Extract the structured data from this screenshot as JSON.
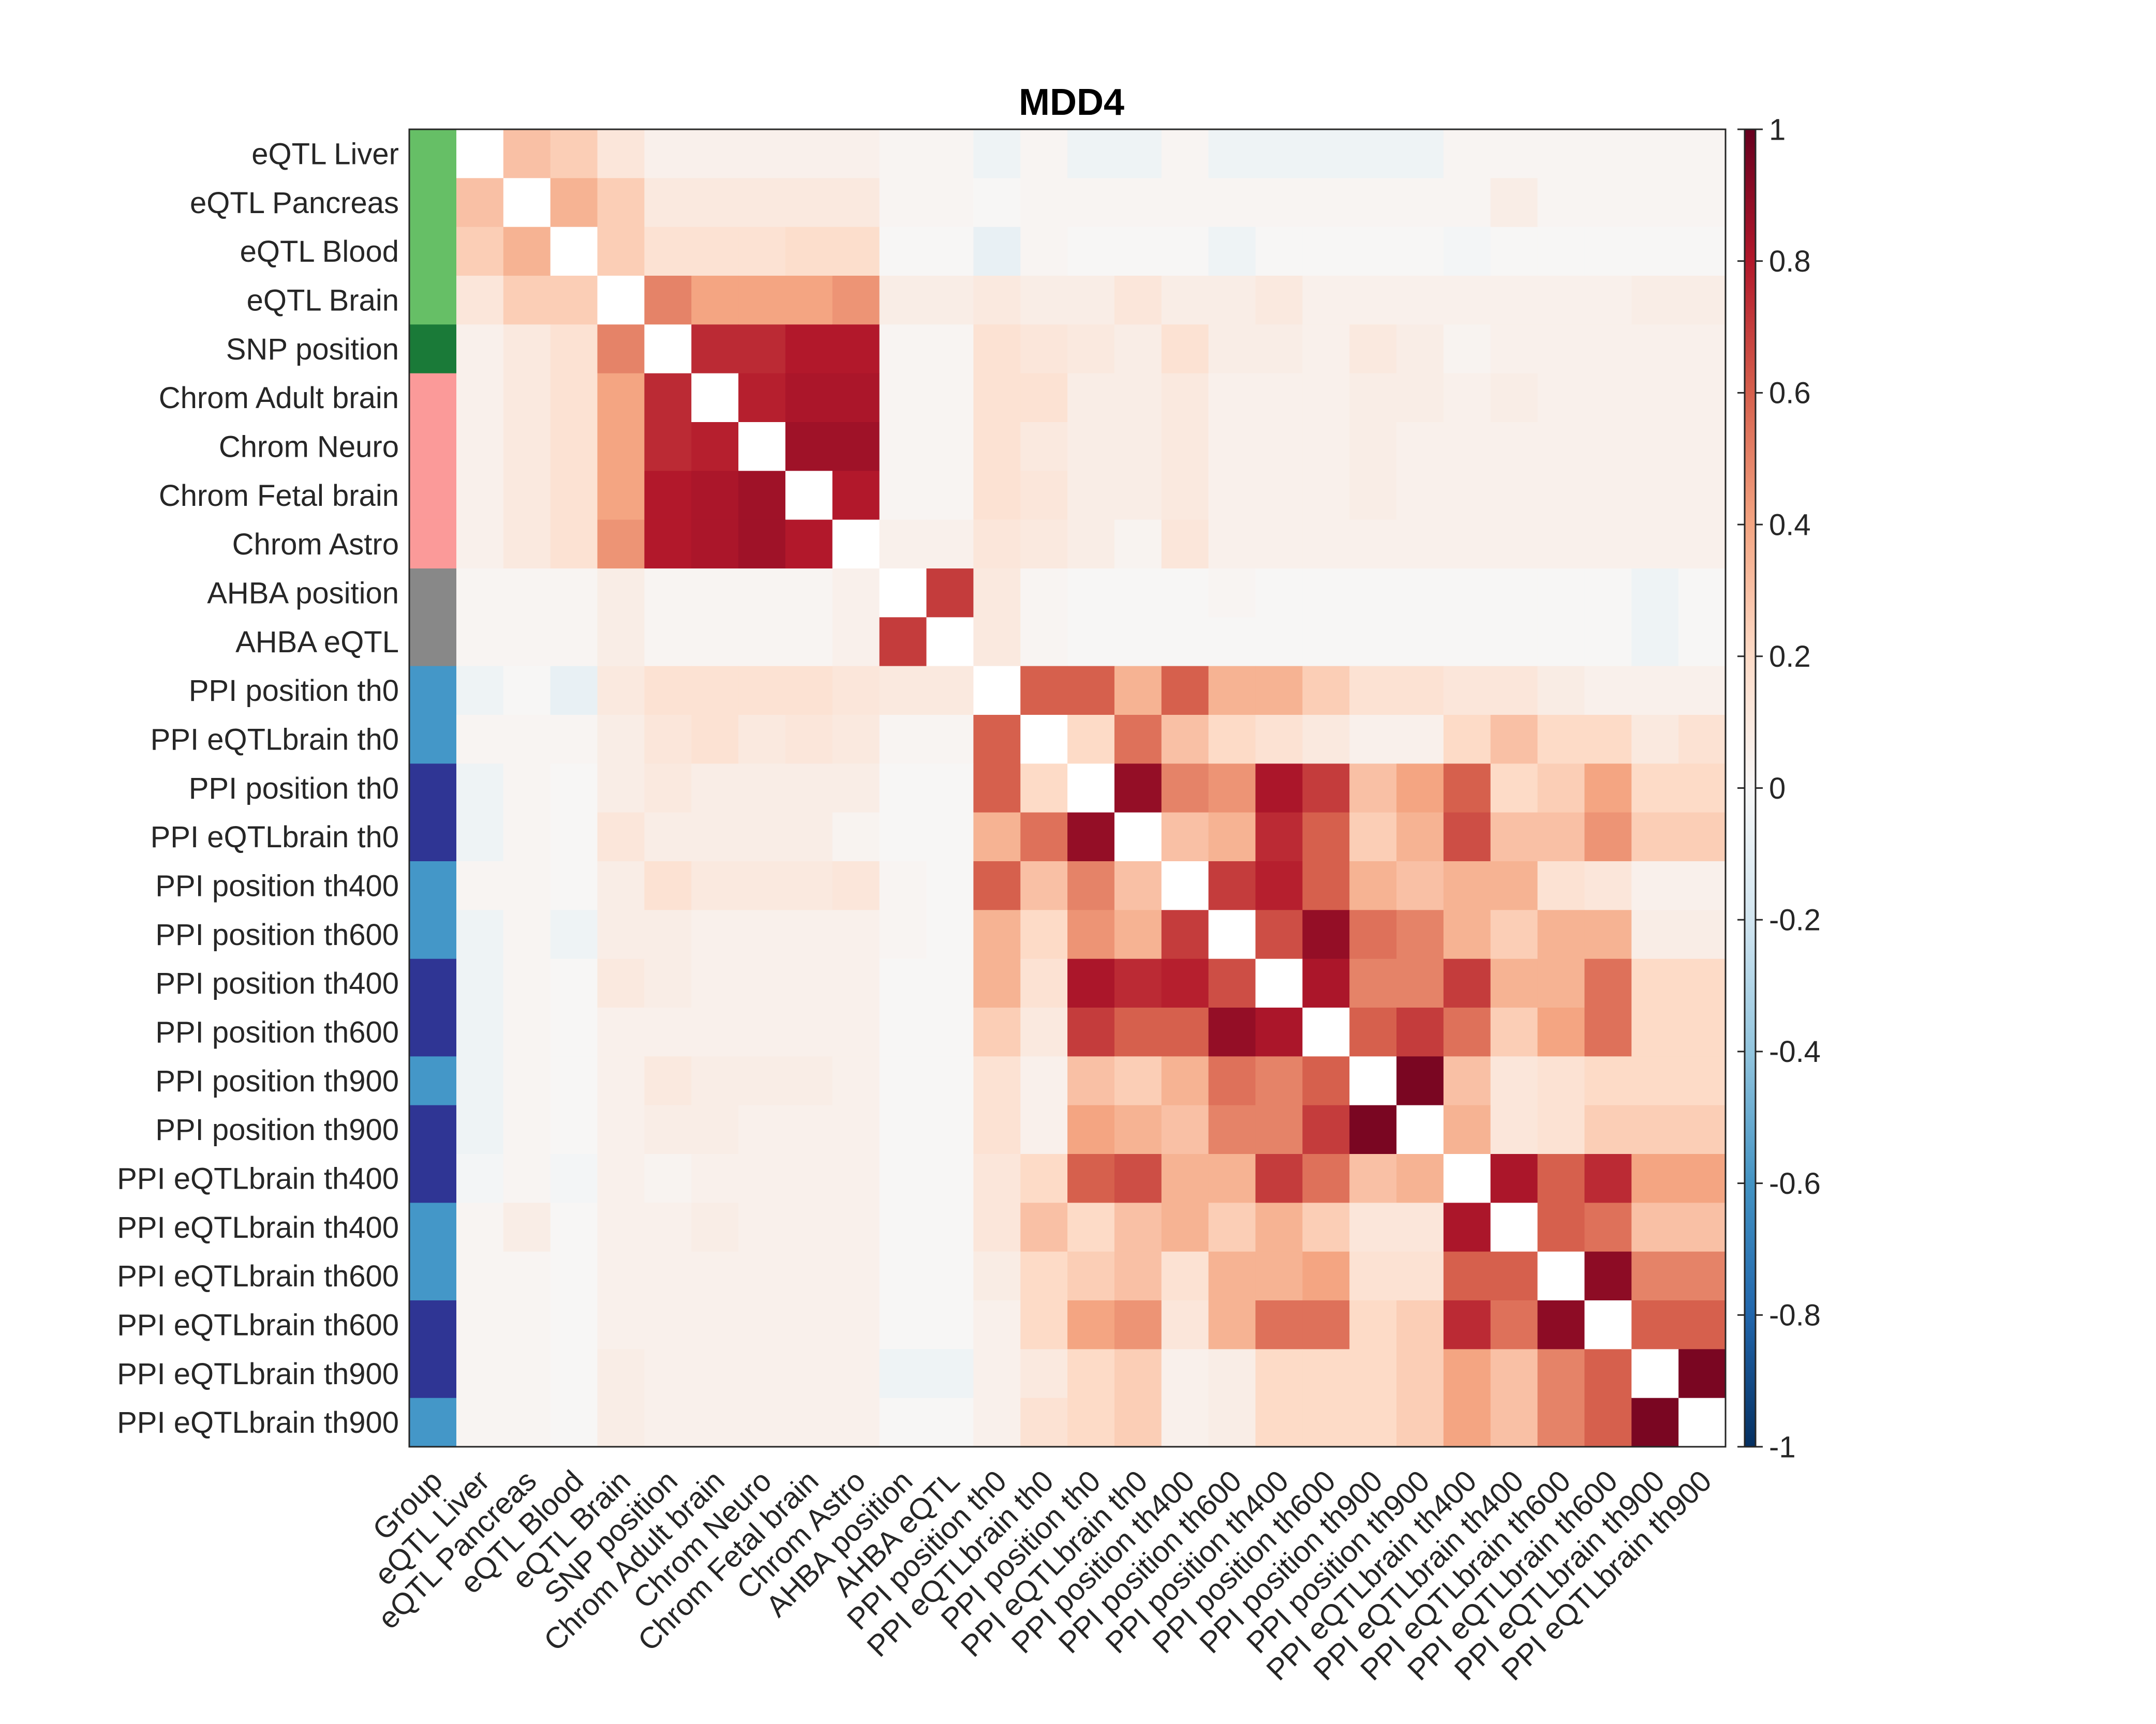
{
  "chart_data": {
    "type": "heatmap",
    "title": "MDD4",
    "x_tick_labels": [
      "Group",
      "eQTL Liver",
      "eQTL Pancreas",
      "eQTL Blood",
      "eQTL Brain",
      "SNP position",
      "Chrom Adult brain",
      "Chrom Neuro",
      "Chrom Fetal brain",
      "Chrom Astro",
      "AHBA position",
      "AHBA eQTL",
      "PPI position th0",
      "PPI eQTLbrain th0",
      "PPI position th0",
      "PPI eQTLbrain th0",
      "PPI position th400",
      "PPI position th600",
      "PPI position th400",
      "PPI position th600",
      "PPI position th900",
      "PPI position th900",
      "PPI eQTLbrain th400",
      "PPI eQTLbrain th400",
      "PPI eQTLbrain th600",
      "PPI eQTLbrain th600",
      "PPI eQTLbrain th900",
      "PPI eQTLbrain th900"
    ],
    "y_tick_labels": [
      "eQTL Liver",
      "eQTL Pancreas",
      "eQTL Blood",
      "eQTL Brain",
      "SNP position",
      "Chrom Adult brain",
      "Chrom Neuro",
      "Chrom Fetal brain",
      "Chrom Astro",
      "AHBA position",
      "AHBA eQTL",
      "PPI position th0",
      "PPI eQTLbrain th0",
      "PPI position th0",
      "PPI eQTLbrain th0",
      "PPI position th400",
      "PPI position th600",
      "PPI position th400",
      "PPI position th600",
      "PPI position th900",
      "PPI position th900",
      "PPI eQTLbrain th400",
      "PPI eQTLbrain th400",
      "PPI eQTLbrain th600",
      "PPI eQTLbrain th600",
      "PPI eQTLbrain th900",
      "PPI eQTLbrain th900"
    ],
    "group_colors": [
      "#66bf66",
      "#66bf66",
      "#66bf66",
      "#66bf66",
      "#1a7a38",
      "#fb9a99",
      "#fb9a99",
      "#fb9a99",
      "#fb9a99",
      "#888888",
      "#888888",
      "#4497c8",
      "#4497c8",
      "#2f3594",
      "#2f3594",
      "#4497c8",
      "#4497c8",
      "#2f3594",
      "#2f3594",
      "#4497c8",
      "#2f3594",
      "#2f3594",
      "#4497c8",
      "#4497c8",
      "#2f3594",
      "#2f3594",
      "#4497c8"
    ],
    "matrix": [
      [
        null,
        0.3,
        0.25,
        0.12,
        0.05,
        0.05,
        0.05,
        0.05,
        0.05,
        0.02,
        0.02,
        -0.05,
        0.02,
        -0.05,
        -0.05,
        0.02,
        -0.05,
        -0.05,
        -0.05,
        -0.05,
        -0.05,
        0.02,
        0.02,
        0.02,
        0.02,
        0.02,
        0.02
      ],
      [
        0.3,
        null,
        0.35,
        0.25,
        0.1,
        0.1,
        0.1,
        0.1,
        0.1,
        0.02,
        0.02,
        0.01,
        0.02,
        0.02,
        0.02,
        0.02,
        0.02,
        0.02,
        0.02,
        0.02,
        0.02,
        0.02,
        0.07,
        0.02,
        0.02,
        0.02,
        0.02
      ],
      [
        0.25,
        0.35,
        null,
        0.25,
        0.15,
        0.15,
        0.15,
        0.18,
        0.18,
        0.01,
        0.01,
        -0.08,
        0.02,
        0.01,
        0.01,
        0.01,
        -0.05,
        0.01,
        0.01,
        0.01,
        0.01,
        -0.02,
        0.01,
        0.01,
        0.01,
        0.01,
        0.01
      ],
      [
        0.12,
        0.25,
        0.25,
        null,
        0.5,
        0.4,
        0.4,
        0.4,
        0.45,
        0.07,
        0.07,
        0.1,
        0.07,
        0.07,
        0.12,
        0.07,
        0.07,
        0.1,
        0.05,
        0.05,
        0.05,
        0.05,
        0.05,
        0.05,
        0.05,
        0.07,
        0.07
      ],
      [
        0.05,
        0.1,
        0.15,
        0.5,
        null,
        0.75,
        0.75,
        0.8,
        0.8,
        0.02,
        0.02,
        0.15,
        0.12,
        0.1,
        0.07,
        0.15,
        0.07,
        0.07,
        0.05,
        0.1,
        0.07,
        0.03,
        0.05,
        0.05,
        0.05,
        0.05,
        0.05
      ],
      [
        0.05,
        0.1,
        0.15,
        0.4,
        0.75,
        null,
        0.78,
        0.82,
        0.82,
        0.02,
        0.02,
        0.15,
        0.15,
        0.07,
        0.07,
        0.1,
        0.05,
        0.05,
        0.05,
        0.07,
        0.07,
        0.05,
        0.07,
        0.05,
        0.05,
        0.05,
        0.05
      ],
      [
        0.05,
        0.1,
        0.15,
        0.4,
        0.75,
        0.78,
        null,
        0.85,
        0.85,
        0.02,
        0.02,
        0.15,
        0.1,
        0.07,
        0.07,
        0.1,
        0.05,
        0.05,
        0.05,
        0.07,
        0.05,
        0.05,
        0.05,
        0.05,
        0.05,
        0.05,
        0.05
      ],
      [
        0.05,
        0.1,
        0.15,
        0.4,
        0.8,
        0.82,
        0.85,
        null,
        0.8,
        0.02,
        0.02,
        0.15,
        0.12,
        0.07,
        0.07,
        0.1,
        0.05,
        0.05,
        0.05,
        0.07,
        0.05,
        0.05,
        0.05,
        0.05,
        0.05,
        0.05,
        0.05
      ],
      [
        0.05,
        0.1,
        0.15,
        0.45,
        0.8,
        0.82,
        0.85,
        0.8,
        null,
        0.05,
        0.05,
        0.12,
        0.1,
        0.07,
        0.03,
        0.12,
        0.05,
        0.05,
        0.05,
        0.05,
        0.05,
        0.05,
        0.05,
        0.05,
        0.05,
        0.05,
        0.05
      ],
      [
        0.02,
        0.02,
        0.02,
        0.07,
        0.02,
        0.02,
        0.02,
        0.02,
        0.05,
        null,
        0.7,
        0.1,
        0.02,
        0.01,
        0.01,
        0.01,
        0.02,
        0.01,
        0.01,
        0.01,
        0.01,
        0.01,
        0.01,
        0.01,
        0.01,
        -0.05,
        0.01
      ],
      [
        0.02,
        0.02,
        0.02,
        0.07,
        0.02,
        0.02,
        0.02,
        0.02,
        0.05,
        0.7,
        null,
        0.1,
        0.02,
        0.01,
        0.01,
        0.01,
        0.01,
        0.01,
        0.01,
        0.01,
        0.01,
        0.01,
        0.01,
        0.01,
        0.01,
        -0.05,
        0.01
      ],
      [
        -0.05,
        0.01,
        -0.08,
        0.1,
        0.15,
        0.15,
        0.15,
        0.15,
        0.12,
        0.1,
        0.1,
        null,
        0.6,
        0.6,
        0.35,
        0.6,
        0.35,
        0.35,
        0.25,
        0.15,
        0.15,
        0.12,
        0.12,
        0.08,
        0.05,
        0.05,
        0.05
      ],
      [
        0.02,
        0.02,
        0.02,
        0.07,
        0.12,
        0.15,
        0.1,
        0.12,
        0.1,
        0.02,
        0.02,
        0.6,
        null,
        0.2,
        0.55,
        0.3,
        0.2,
        0.15,
        0.1,
        0.05,
        0.05,
        0.2,
        0.3,
        0.2,
        0.2,
        0.1,
        0.15
      ],
      [
        -0.05,
        0.02,
        0.01,
        0.07,
        0.1,
        0.07,
        0.07,
        0.07,
        0.07,
        0.01,
        0.01,
        0.6,
        0.2,
        null,
        0.88,
        0.5,
        0.45,
        0.82,
        0.7,
        0.3,
        0.4,
        0.6,
        0.2,
        0.25,
        0.4,
        0.2,
        0.2
      ],
      [
        -0.05,
        0.02,
        0.01,
        0.12,
        0.07,
        0.07,
        0.07,
        0.07,
        0.03,
        0.01,
        0.01,
        0.35,
        0.55,
        0.88,
        null,
        0.3,
        0.35,
        0.75,
        0.6,
        0.25,
        0.35,
        0.65,
        0.3,
        0.3,
        0.45,
        0.25,
        0.25
      ],
      [
        0.02,
        0.02,
        0.01,
        0.07,
        0.15,
        0.1,
        0.1,
        0.1,
        0.12,
        0.02,
        0.01,
        0.6,
        0.3,
        0.5,
        0.3,
        null,
        0.7,
        0.78,
        0.6,
        0.35,
        0.3,
        0.35,
        0.35,
        0.15,
        0.12,
        0.05,
        0.05
      ],
      [
        -0.05,
        0.02,
        -0.05,
        0.07,
        0.07,
        0.05,
        0.05,
        0.05,
        0.05,
        0.02,
        0.01,
        0.35,
        0.2,
        0.45,
        0.35,
        0.7,
        null,
        0.65,
        0.88,
        0.55,
        0.5,
        0.35,
        0.25,
        0.35,
        0.35,
        0.07,
        0.07
      ],
      [
        -0.05,
        0.02,
        0.01,
        0.1,
        0.07,
        0.05,
        0.05,
        0.05,
        0.05,
        0.01,
        0.01,
        0.35,
        0.15,
        0.82,
        0.75,
        0.78,
        0.65,
        null,
        0.82,
        0.5,
        0.5,
        0.7,
        0.35,
        0.35,
        0.55,
        0.2,
        0.2
      ],
      [
        -0.05,
        0.02,
        0.01,
        0.05,
        0.05,
        0.05,
        0.05,
        0.05,
        0.05,
        0.01,
        0.01,
        0.25,
        0.1,
        0.7,
        0.6,
        0.6,
        0.88,
        0.82,
        null,
        0.6,
        0.7,
        0.55,
        0.25,
        0.4,
        0.55,
        0.2,
        0.2
      ],
      [
        -0.05,
        0.02,
        0.01,
        0.05,
        0.1,
        0.07,
        0.07,
        0.07,
        0.05,
        0.01,
        0.01,
        0.15,
        0.05,
        0.3,
        0.25,
        0.35,
        0.55,
        0.5,
        0.6,
        null,
        0.95,
        0.3,
        0.12,
        0.15,
        0.2,
        0.2,
        0.2
      ],
      [
        -0.05,
        0.02,
        0.01,
        0.05,
        0.07,
        0.07,
        0.05,
        0.05,
        0.05,
        0.01,
        0.01,
        0.15,
        0.05,
        0.4,
        0.35,
        0.3,
        0.5,
        0.5,
        0.7,
        0.95,
        null,
        0.35,
        0.12,
        0.15,
        0.25,
        0.25,
        0.25
      ],
      [
        -0.02,
        0.02,
        -0.02,
        0.05,
        0.03,
        0.05,
        0.05,
        0.05,
        0.05,
        0.01,
        0.01,
        0.12,
        0.2,
        0.6,
        0.65,
        0.35,
        0.35,
        0.7,
        0.55,
        0.3,
        0.35,
        null,
        0.82,
        0.6,
        0.75,
        0.4,
        0.4
      ],
      [
        0.02,
        0.07,
        0.01,
        0.05,
        0.05,
        0.07,
        0.05,
        0.05,
        0.05,
        0.01,
        0.01,
        0.12,
        0.3,
        0.2,
        0.3,
        0.35,
        0.25,
        0.35,
        0.25,
        0.12,
        0.12,
        0.82,
        null,
        0.6,
        0.55,
        0.3,
        0.3
      ],
      [
        0.02,
        0.02,
        0.01,
        0.05,
        0.05,
        0.05,
        0.05,
        0.05,
        0.05,
        0.01,
        0.01,
        0.08,
        0.2,
        0.25,
        0.3,
        0.15,
        0.35,
        0.35,
        0.4,
        0.15,
        0.15,
        0.6,
        0.6,
        null,
        0.9,
        0.5,
        0.5
      ],
      [
        0.02,
        0.02,
        0.01,
        0.05,
        0.05,
        0.05,
        0.05,
        0.05,
        0.05,
        0.01,
        0.01,
        0.05,
        0.2,
        0.4,
        0.45,
        0.12,
        0.35,
        0.55,
        0.55,
        0.2,
        0.25,
        0.75,
        0.55,
        0.9,
        null,
        0.6,
        0.6
      ],
      [
        0.02,
        0.02,
        0.01,
        0.07,
        0.05,
        0.05,
        0.05,
        0.05,
        0.05,
        -0.05,
        -0.05,
        0.05,
        0.1,
        0.2,
        0.25,
        0.05,
        0.07,
        0.2,
        0.2,
        0.2,
        0.25,
        0.4,
        0.3,
        0.5,
        0.6,
        null,
        0.95
      ],
      [
        0.02,
        0.02,
        0.01,
        0.07,
        0.05,
        0.05,
        0.05,
        0.05,
        0.05,
        0.01,
        0.01,
        0.05,
        0.15,
        0.2,
        0.25,
        0.05,
        0.07,
        0.2,
        0.2,
        0.2,
        0.25,
        0.4,
        0.3,
        0.5,
        0.6,
        0.95,
        null
      ]
    ],
    "color_range": [
      -1,
      1
    ],
    "colorbar_ticks": [
      "1",
      "0.8",
      "0.6",
      "0.4",
      "0.2",
      "0",
      "-0.2",
      "-0.4",
      "-0.6",
      "-0.8",
      "-1"
    ],
    "colormap": [
      "#053061",
      "#2166ac",
      "#4393c3",
      "#92c5de",
      "#d1e5f0",
      "#f7f7f7",
      "#fddbc7",
      "#f4a582",
      "#d6604d",
      "#b2182b",
      "#67001f"
    ],
    "diagonal_color": "#ffffff",
    "colorbar_position": "right"
  }
}
